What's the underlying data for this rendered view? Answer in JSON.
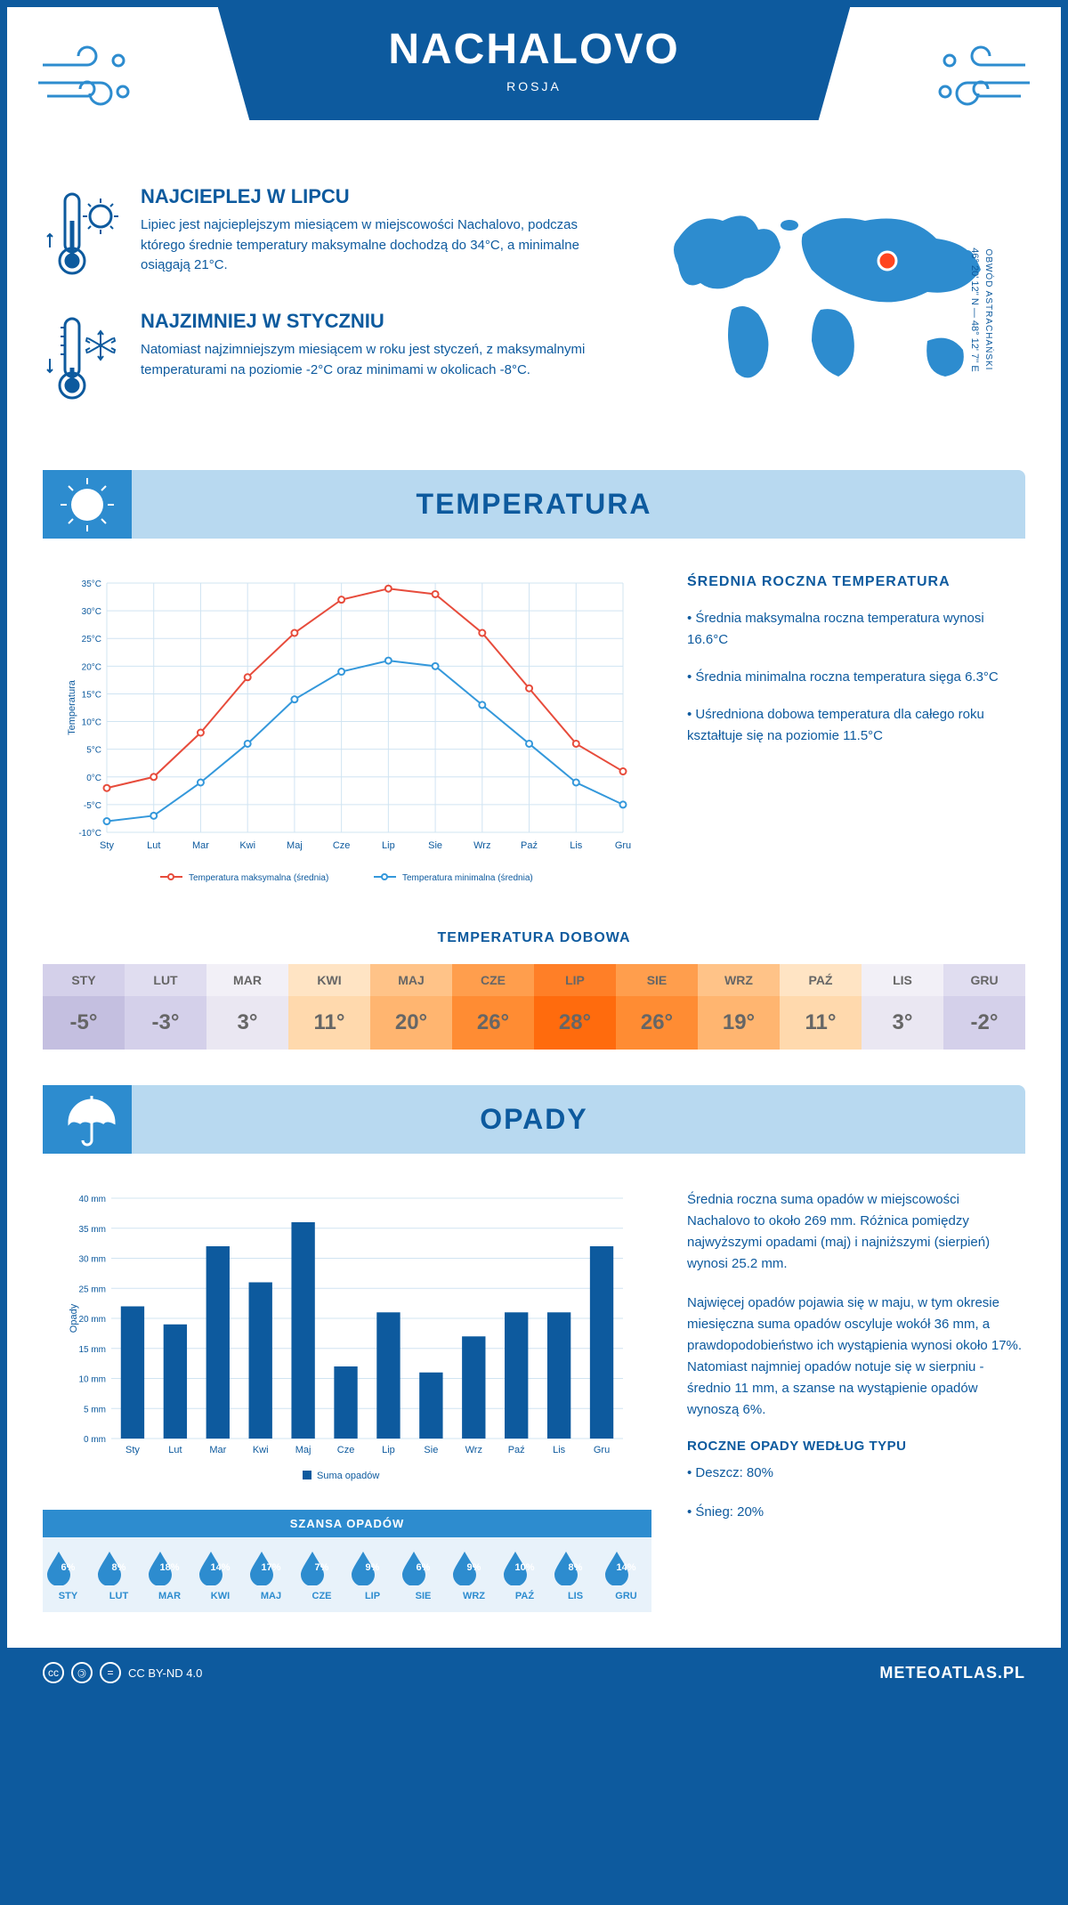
{
  "header": {
    "title": "NACHALOVO",
    "country": "ROSJA"
  },
  "intro": {
    "hot": {
      "title": "NAJCIEPLEJ W LIPCU",
      "text": "Lipiec jest najcieplejszym miesiącem w miejscowości Nachalovo, podczas którego średnie temperatury maksymalne dochodzą do 34°C, a minimalne osiągają 21°C."
    },
    "cold": {
      "title": "NAJZIMNIEJ W STYCZNIU",
      "text": "Natomiast najzimniejszym miesiącem w roku jest styczeń, z maksymalnymi temperaturami na poziomie -2°C oraz minimami w okolicach -8°C."
    },
    "coords": "46° 20' 12'' N — 48° 12' 7'' E",
    "region": "OBWÓD ASTRACHAŃSKI"
  },
  "temperature": {
    "section_title": "TEMPERATURA",
    "info_title": "ŚREDNIA ROCZNA TEMPERATURA",
    "bullets": [
      "• Średnia maksymalna roczna temperatura wynosi 16.6°C",
      "• Średnia minimalna roczna temperatura sięga 6.3°C",
      "• Uśredniona dobowa temperatura dla całego roku kształtuje się na poziomie 11.5°C"
    ],
    "chart": {
      "months": [
        "Sty",
        "Lut",
        "Mar",
        "Kwi",
        "Maj",
        "Cze",
        "Lip",
        "Sie",
        "Wrz",
        "Paź",
        "Lis",
        "Gru"
      ],
      "max_series": [
        -2,
        0,
        8,
        18,
        26,
        32,
        34,
        33,
        26,
        16,
        6,
        1
      ],
      "min_series": [
        -8,
        -7,
        -1,
        6,
        14,
        19,
        21,
        20,
        13,
        6,
        -1,
        -5
      ],
      "max_color": "#e74c3c",
      "min_color": "#3498db",
      "grid_color": "#d0e4f2",
      "ylabel": "Temperatura",
      "ylim": [
        -10,
        35
      ],
      "ytick_step": 5,
      "legend_max": "Temperatura maksymalna (średnia)",
      "legend_min": "Temperatura minimalna (średnia)"
    },
    "daily": {
      "title": "TEMPERATURA DOBOWA",
      "months": [
        "STY",
        "LUT",
        "MAR",
        "KWI",
        "MAJ",
        "CZE",
        "LIP",
        "SIE",
        "WRZ",
        "PAŹ",
        "LIS",
        "GRU"
      ],
      "values": [
        "-5°",
        "-3°",
        "3°",
        "11°",
        "20°",
        "26°",
        "28°",
        "26°",
        "19°",
        "11°",
        "3°",
        "-2°"
      ],
      "head_colors": [
        "#d4d0ea",
        "#e0ddf0",
        "#f2f0f7",
        "#ffe4c4",
        "#ffc388",
        "#ff9e4d",
        "#ff7f27",
        "#ff9e4d",
        "#ffc388",
        "#ffe4c4",
        "#f2f0f7",
        "#e0ddf0"
      ],
      "body_colors": [
        "#c4bfe0",
        "#d4d0ea",
        "#eae7f2",
        "#ffd9ad",
        "#ffb570",
        "#ff8c33",
        "#ff6b0d",
        "#ff8c33",
        "#ffb570",
        "#ffd9ad",
        "#eae7f2",
        "#d4d0ea"
      ]
    }
  },
  "precipitation": {
    "section_title": "OPADY",
    "text1": "Średnia roczna suma opadów w miejscowości Nachalovo to około 269 mm. Różnica pomiędzy najwyższymi opadami (maj) i najniższymi (sierpień) wynosi 25.2 mm.",
    "text2": "Najwięcej opadów pojawia się w maju, w tym okresie miesięczna suma opadów oscyluje wokół 36 mm, a prawdopodobieństwo ich wystąpienia wynosi około 17%. Natomiast najmniej opadów notuje się w sierpniu - średnio 11 mm, a szanse na wystąpienie opadów wynoszą 6%.",
    "type_title": "ROCZNE OPADY WEDŁUG TYPU",
    "rain": "• Deszcz: 80%",
    "snow": "• Śnieg: 20%",
    "chart": {
      "months": [
        "Sty",
        "Lut",
        "Mar",
        "Kwi",
        "Maj",
        "Cze",
        "Lip",
        "Sie",
        "Wrz",
        "Paź",
        "Lis",
        "Gru"
      ],
      "values": [
        22,
        19,
        32,
        26,
        36,
        12,
        21,
        11,
        17,
        21,
        21,
        32
      ],
      "bar_color": "#0d5a9e",
      "grid_color": "#d0e4f2",
      "ylabel": "Opady",
      "ylim": [
        0,
        40
      ],
      "ytick_step": 5,
      "legend": "Suma opadów"
    },
    "chance": {
      "title": "SZANSA OPADÓW",
      "months": [
        "STY",
        "LUT",
        "MAR",
        "KWI",
        "MAJ",
        "CZE",
        "LIP",
        "SIE",
        "WRZ",
        "PAŹ",
        "LIS",
        "GRU"
      ],
      "values": [
        "6%",
        "8%",
        "18%",
        "14%",
        "17%",
        "7%",
        "9%",
        "6%",
        "9%",
        "10%",
        "8%",
        "14%"
      ]
    }
  },
  "footer": {
    "license": "CC BY-ND 4.0",
    "site": "METEOATLAS.PL"
  }
}
